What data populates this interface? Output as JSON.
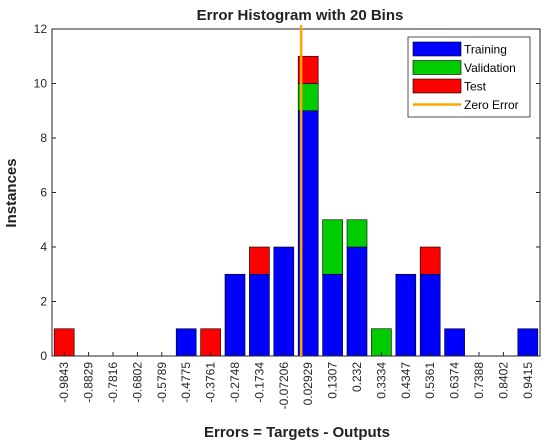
{
  "chart_data": {
    "type": "bar",
    "stacked": true,
    "title": "Error Histogram with 20 Bins",
    "xlabel": "Errors = Targets - Outputs",
    "ylabel": "Instances",
    "ylim": [
      0,
      12
    ],
    "yticks": [
      0,
      2,
      4,
      6,
      8,
      10,
      12
    ],
    "grid": false,
    "legend_position": "top-right",
    "categories": [
      "-0.9843",
      "-0.8829",
      "-0.7816",
      "-0.6802",
      "-0.5789",
      "-0.4775",
      "-0.3761",
      "-0.2748",
      "-0.1734",
      "-0.07206",
      "0.02929",
      "0.1307",
      "0.232",
      "0.3334",
      "0.4347",
      "0.5361",
      "0.6374",
      "0.7388",
      "0.8402",
      "0.9415"
    ],
    "series": [
      {
        "name": "Training",
        "color": "#0000ff",
        "values": [
          0,
          0,
          0,
          0,
          0,
          1,
          0,
          3,
          3,
          4,
          9,
          3,
          4,
          0,
          3,
          3,
          1,
          0,
          0,
          1
        ]
      },
      {
        "name": "Validation",
        "color": "#00cc00",
        "values": [
          0,
          0,
          0,
          0,
          0,
          0,
          0,
          0,
          0,
          0,
          1,
          2,
          1,
          1,
          0,
          0,
          0,
          0,
          0,
          0
        ]
      },
      {
        "name": "Test",
        "color": "#ff0000",
        "values": [
          1,
          0,
          0,
          0,
          0,
          0,
          1,
          0,
          1,
          0,
          1,
          0,
          0,
          0,
          0,
          1,
          0,
          0,
          0,
          0
        ]
      }
    ],
    "reference_line": {
      "name": "Zero Error",
      "color": "#ffa500",
      "x": 0
    }
  }
}
